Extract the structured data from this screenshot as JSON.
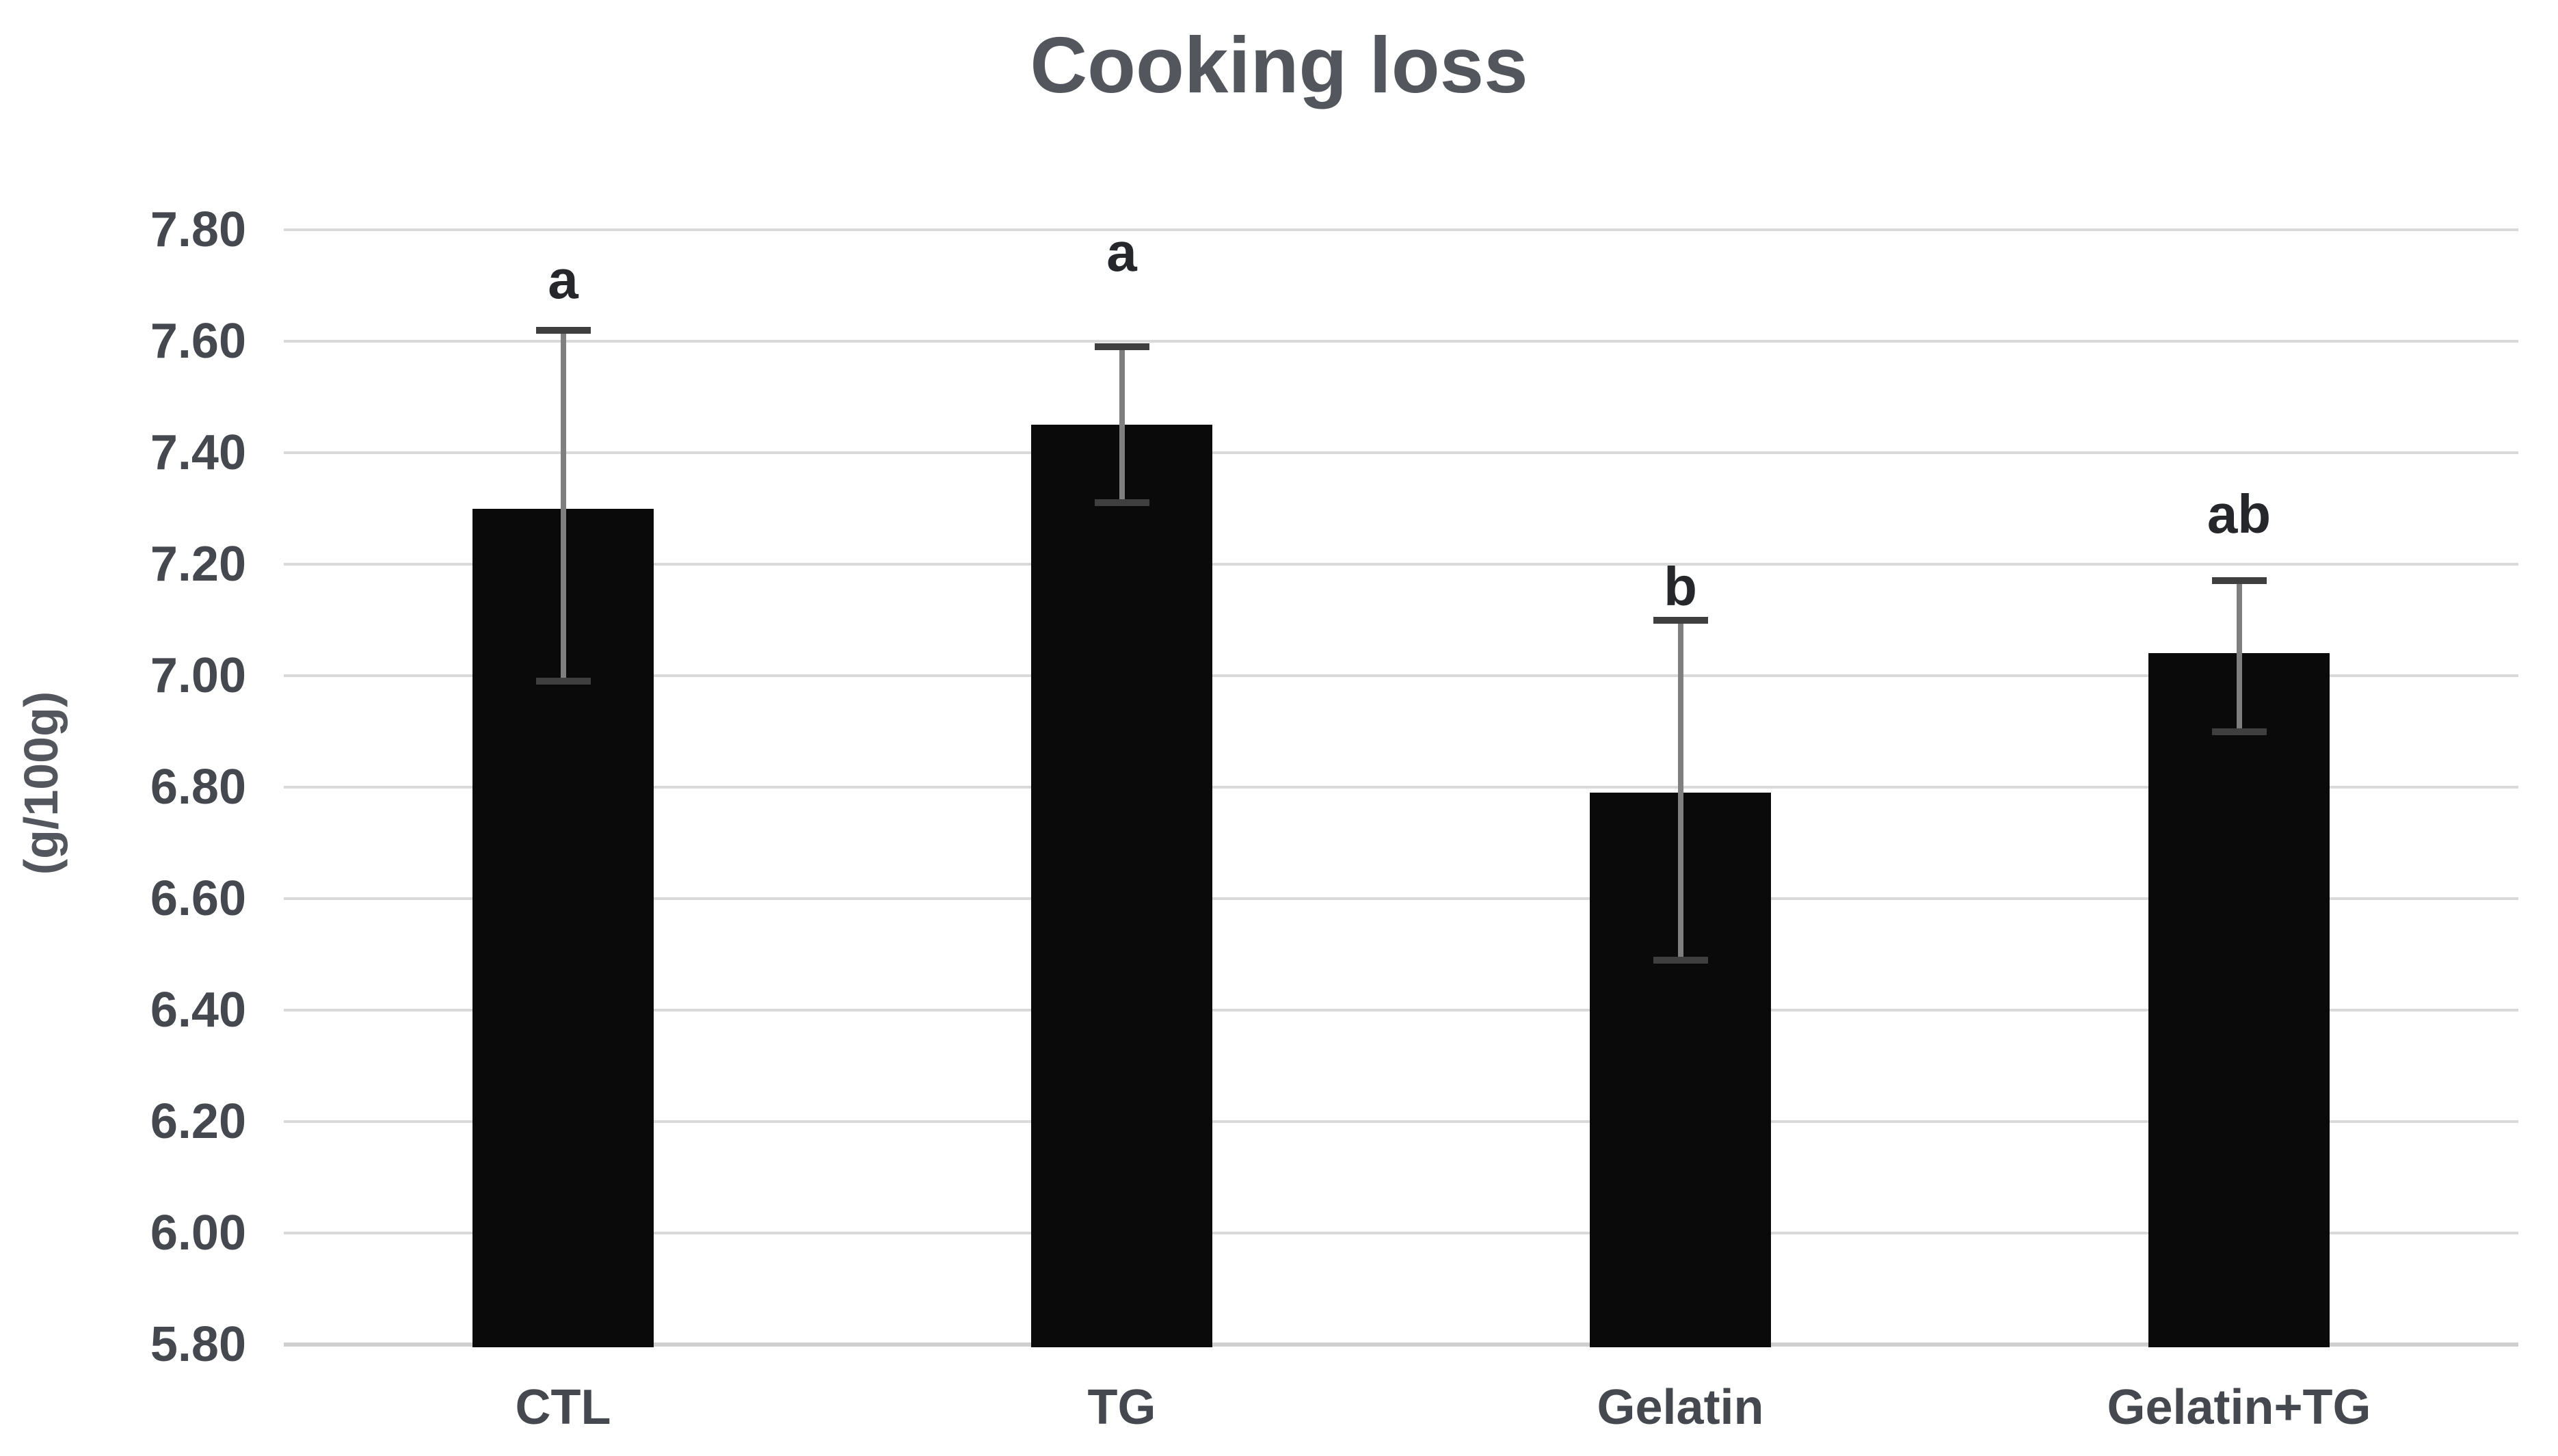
{
  "chart_data": {
    "type": "bar",
    "title": "Cooking loss",
    "ylabel": "(g/100g)",
    "xlabel": "",
    "categories": [
      "CTL",
      "TG",
      "Gelatin",
      "Gelatin+TG"
    ],
    "values": [
      7.3,
      7.45,
      6.79,
      7.04
    ],
    "error_bars": {
      "low": [
        6.99,
        7.31,
        6.49,
        6.9
      ],
      "high": [
        7.62,
        7.59,
        7.1,
        7.17
      ]
    },
    "sig_letters": [
      "a",
      "a",
      "b",
      "ab"
    ],
    "sig_letter_y": [
      7.71,
      7.76,
      7.16,
      7.29
    ],
    "ylim": [
      5.8,
      7.8
    ],
    "ytick_step": 0.2,
    "ytick_labels": [
      "7.80",
      "7.60",
      "7.40",
      "7.20",
      "7.00",
      "6.80",
      "6.60",
      "6.40",
      "6.20",
      "6.00",
      "5.80"
    ],
    "grid": "horizontal",
    "legend": "none",
    "colors": {
      "bar": "#0a0a0a",
      "gridline": "#d9d9d9",
      "baseline": "#cfcfcf",
      "error_line": "#7f7f7f",
      "error_cap": "#3f3f3f",
      "title_text": "#53565c",
      "tick_text": "#45484e",
      "letter_text": "#26272b"
    }
  }
}
